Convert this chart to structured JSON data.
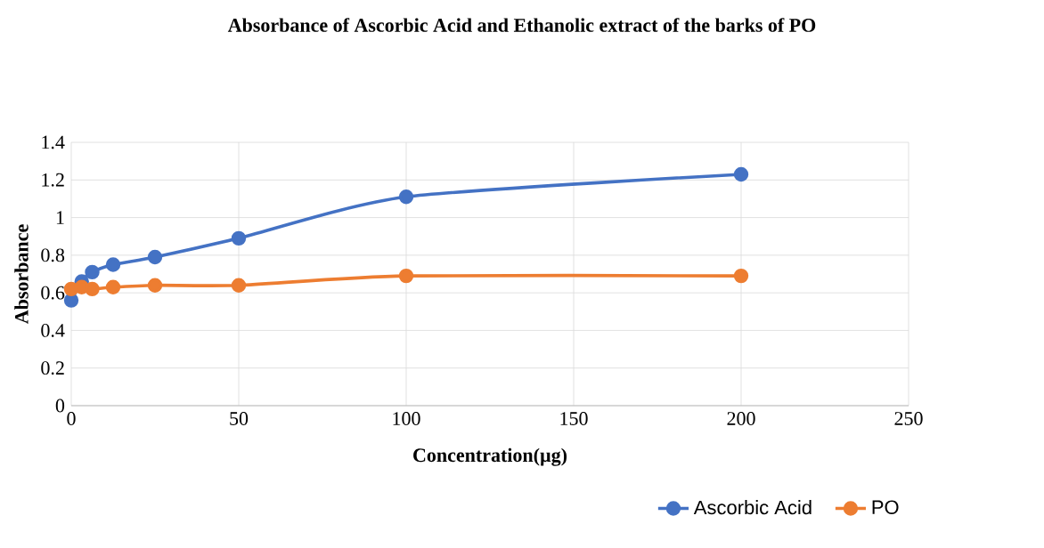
{
  "chart_data": {
    "type": "line",
    "title": "Absorbance of Ascorbic Acid and Ethanolic extract of the barks of PO",
    "xlabel": "Concentration(µg)",
    "ylabel": "Absorbance",
    "x": [
      0,
      3.125,
      6.25,
      12.5,
      25,
      50,
      100,
      200
    ],
    "series": [
      {
        "name": "Ascorbic Acid",
        "color": "#4472c4",
        "values": [
          0.56,
          0.66,
          0.71,
          0.75,
          0.79,
          0.89,
          1.11,
          1.23
        ]
      },
      {
        "name": "PO",
        "color": "#ed7d31",
        "values": [
          0.62,
          0.63,
          0.62,
          0.63,
          0.64,
          0.64,
          0.69,
          0.69
        ]
      }
    ],
    "xlim": [
      0,
      250
    ],
    "xticks": [
      0,
      50,
      100,
      150,
      200,
      250
    ],
    "ylim": [
      0,
      1.4
    ],
    "yticks": [
      0,
      0.2,
      0.4,
      0.6,
      0.8,
      1,
      1.2,
      1.4
    ],
    "grid": true,
    "legend": "bottom right",
    "marker": "circle",
    "line_style": "solid"
  }
}
